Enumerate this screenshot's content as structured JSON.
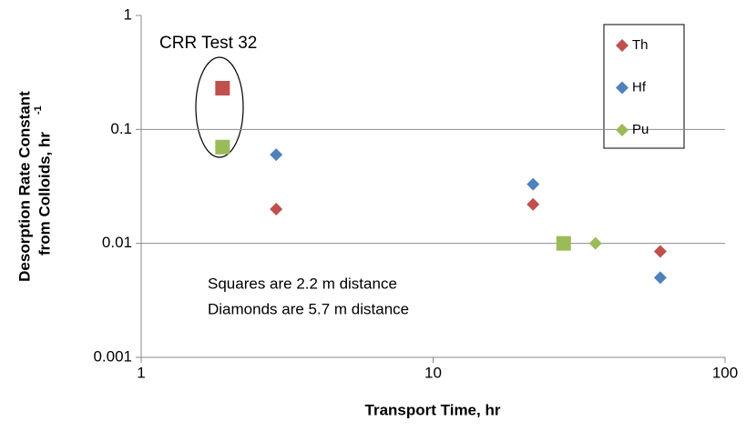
{
  "chart_data": {
    "type": "scatter",
    "x_label": "Transport Time, hr",
    "y_label_lines": [
      "Desorption Rate Constant",
      "from Colloids, hr"
    ],
    "y_label_superscript": "-1",
    "annotations": [
      "CRR Test 32",
      "Squares are 2.2 m distance",
      "Diamonds are 5.7 m distance"
    ],
    "xscale": "log",
    "yscale": "log",
    "xlim": [
      1,
      100
    ],
    "xticks": [
      1,
      10,
      100
    ],
    "ylim": [
      0.001,
      1
    ],
    "yticks": [
      0.001,
      0.01,
      0.1,
      1
    ],
    "grid": true,
    "legend_position": "upper right",
    "legend_marker": "diamond",
    "series": [
      {
        "name": "Th",
        "color": "#c0504d",
        "x": [
          1.9,
          2.9,
          22,
          60
        ],
        "values": [
          0.23,
          0.02,
          0.022,
          0.0085
        ],
        "markers": [
          "square",
          "diamond",
          "diamond",
          "diamond"
        ]
      },
      {
        "name": "Hf",
        "color": "#4f81bd",
        "x": [
          2.9,
          22,
          60
        ],
        "values": [
          0.06,
          0.033,
          0.005
        ],
        "markers": [
          "diamond",
          "diamond",
          "diamond"
        ]
      },
      {
        "name": "Pu",
        "color": "#9bbb59",
        "x": [
          1.9,
          28,
          36
        ],
        "values": [
          0.07,
          0.01,
          0.01
        ],
        "markers": [
          "square",
          "square",
          "diamond"
        ]
      }
    ]
  }
}
